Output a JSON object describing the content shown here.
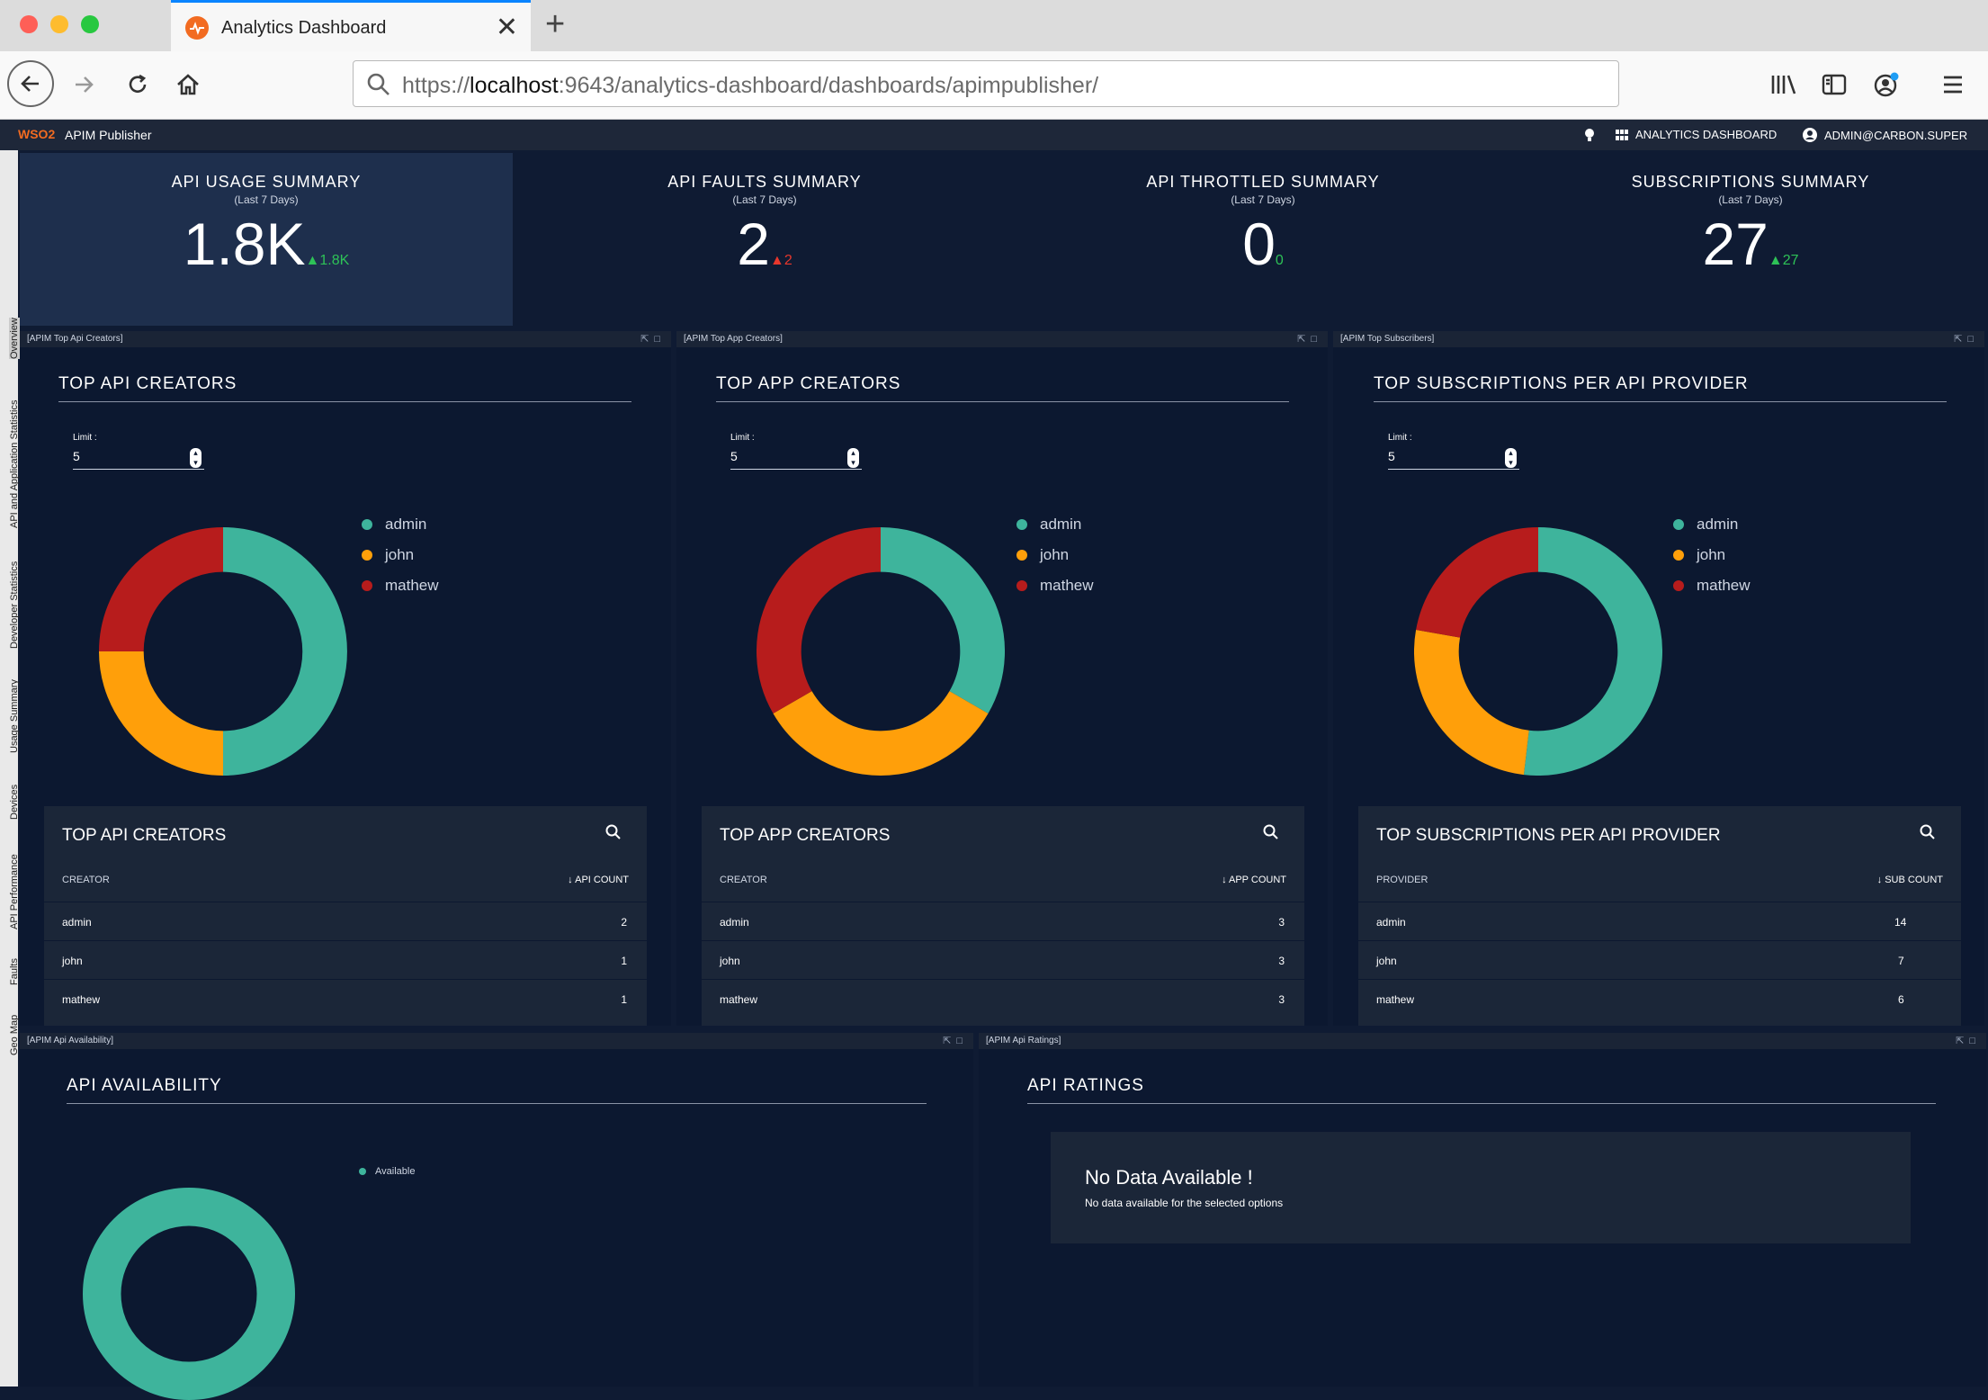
{
  "browser": {
    "tab_title": "Analytics Dashboard",
    "url_prefix": "https://",
    "url_host": "localhost",
    "url_rest": ":9643/analytics-dashboard/dashboards/apimpublisher/"
  },
  "app": {
    "brand": "WSO2",
    "title": "APIM Publisher",
    "analytics_link": "ANALYTICS DASHBOARD",
    "user": "ADMIN@CARBON.SUPER"
  },
  "sidebar": {
    "items": [
      "Overview",
      "API and Application Statistics",
      "Developer Statistics",
      "Usage Summary",
      "Devices",
      "API Performance",
      "Faults",
      "Geo Map"
    ]
  },
  "summary": [
    {
      "title": "API USAGE SUMMARY",
      "period": "(Last 7 Days)",
      "value": "1.8K",
      "delta": "▲1.8K",
      "trend": "up"
    },
    {
      "title": "API FAULTS SUMMARY",
      "period": "(Last 7 Days)",
      "value": "2",
      "delta": "▲2",
      "trend": "down"
    },
    {
      "title": "API THROTTLED SUMMARY",
      "period": "(Last 7 Days)",
      "value": "0",
      "delta": "0",
      "trend": "up"
    },
    {
      "title": "SUBSCRIPTIONS SUMMARY",
      "period": "(Last 7 Days)",
      "value": "27",
      "delta": "▲27",
      "trend": "up"
    }
  ],
  "colors": {
    "admin": "#3eb49c",
    "john": "#ff9f0a",
    "mathew": "#b71c1c"
  },
  "widgets": [
    {
      "label": "[APIM Top Api Creators]",
      "title": "TOP API CREATORS",
      "limit_label": "Limit :",
      "limit": "5",
      "legend": [
        "admin",
        "john",
        "mathew"
      ],
      "table_title": "TOP API CREATORS",
      "col1": "CREATOR",
      "col2": "↓ API COUNT",
      "rows": [
        [
          "admin",
          "2"
        ],
        [
          "john",
          "1"
        ],
        [
          "mathew",
          "1"
        ]
      ],
      "chart_data": {
        "type": "pie",
        "categories": [
          "admin",
          "john",
          "mathew"
        ],
        "values": [
          2,
          1,
          1
        ]
      }
    },
    {
      "label": "[APIM Top App Creators]",
      "title": "TOP APP CREATORS",
      "limit_label": "Limit :",
      "limit": "5",
      "legend": [
        "admin",
        "john",
        "mathew"
      ],
      "table_title": "TOP APP CREATORS",
      "col1": "CREATOR",
      "col2": "↓ APP COUNT",
      "rows": [
        [
          "admin",
          "3"
        ],
        [
          "john",
          "3"
        ],
        [
          "mathew",
          "3"
        ]
      ],
      "chart_data": {
        "type": "pie",
        "categories": [
          "admin",
          "john",
          "mathew"
        ],
        "values": [
          3,
          3,
          3
        ]
      }
    },
    {
      "label": "[APIM Top Subscribers]",
      "title": "TOP SUBSCRIPTIONS PER API PROVIDER",
      "limit_label": "Limit :",
      "limit": "5",
      "legend": [
        "admin",
        "john",
        "mathew"
      ],
      "table_title": "TOP SUBSCRIPTIONS PER API PROVIDER",
      "col1": "PROVIDER",
      "col2": "↓ SUB COUNT",
      "rows": [
        [
          "admin",
          "14"
        ],
        [
          "john",
          "7"
        ],
        [
          "mathew",
          "6"
        ]
      ],
      "chart_data": {
        "type": "pie",
        "categories": [
          "admin",
          "john",
          "mathew"
        ],
        "values": [
          14,
          7,
          6
        ]
      }
    }
  ],
  "availability": {
    "label": "[APIM Api Availability]",
    "title": "API AVAILABILITY",
    "legend": "Available",
    "chart_data": {
      "type": "pie",
      "categories": [
        "Available"
      ],
      "values": [
        1
      ]
    }
  },
  "ratings": {
    "label": "[APIM Api Ratings]",
    "title": "API RATINGS",
    "nodata_title": "No Data Available !",
    "nodata_sub": "No data available for the selected options"
  }
}
